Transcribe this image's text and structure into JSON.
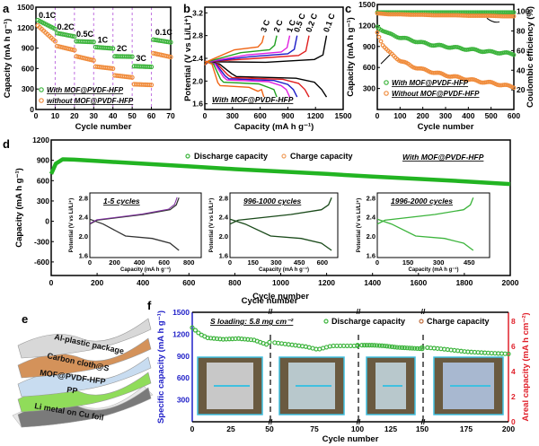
{
  "panels": {
    "a": "a",
    "b": "b",
    "c": "c",
    "d": "d",
    "e": "e",
    "f": "f"
  },
  "chart_data": [
    {
      "id": "a",
      "type": "scatter",
      "xlabel": "Cycle number",
      "ylabel": "Capacity (mA h g⁻¹)",
      "xlim": [
        0,
        70
      ],
      "ylim": [
        0,
        1500
      ],
      "xticks": [
        0,
        10,
        20,
        30,
        40,
        50,
        60,
        70
      ],
      "yticks": [
        0,
        300,
        600,
        900,
        1200,
        1500
      ],
      "rate_labels": [
        {
          "label": "0.1C",
          "x": 1
        },
        {
          "label": "0.2C",
          "x": 11
        },
        {
          "label": "0.5C",
          "x": 21
        },
        {
          "label": "1C",
          "x": 32
        },
        {
          "label": "2C",
          "x": 42
        },
        {
          "label": "3C",
          "x": 52
        },
        {
          "label": "0.1C",
          "x": 62
        }
      ],
      "dividers": [
        10,
        20,
        30,
        40,
        50,
        60
      ],
      "series": [
        {
          "name": "With MOF@PVDF-HFP",
          "color": "#3cb43c",
          "segments": [
            [
              1310,
              1180
            ],
            [
              1120,
              1070
            ],
            [
              1000,
              990
            ],
            [
              915,
              895
            ],
            [
              780,
              775
            ],
            [
              635,
              625
            ],
            [
              1025,
              985
            ]
          ]
        },
        {
          "name": "without MOF@PVDF-HFP",
          "color": "#f08c3c",
          "segments": [
            [
              1230,
              1000
            ],
            [
              930,
              870
            ],
            [
              780,
              720
            ],
            [
              630,
              600
            ],
            [
              500,
              470
            ],
            [
              370,
              360
            ],
            [
              825,
              770
            ]
          ]
        }
      ]
    },
    {
      "id": "b",
      "type": "line",
      "xlabel": "Capacity (mA h g⁻¹)",
      "ylabel": "Potential (V vs Li/Li⁺)",
      "xlim": [
        0,
        1500
      ],
      "ylim": [
        1.5,
        3.3
      ],
      "xticks": [
        0,
        300,
        600,
        900,
        1200,
        1500
      ],
      "yticks": [
        1.6,
        2.0,
        2.4,
        2.8,
        3.2
      ],
      "annotation": "With MOF@PVDF-HFP",
      "series": [
        {
          "name": "0.1 C",
          "color": "#000000",
          "capacity": 1320,
          "charge_plateau": 2.38,
          "discharge_plateau": 2.08
        },
        {
          "name": "0.2 C",
          "color": "#e02020",
          "capacity": 1130,
          "charge_plateau": 2.45,
          "discharge_plateau": 2.06
        },
        {
          "name": "0.5 C",
          "color": "#1c1cc8",
          "capacity": 1000,
          "charge_plateau": 2.48,
          "discharge_plateau": 2.04
        },
        {
          "name": "1 C",
          "color": "#e020e0",
          "capacity": 920,
          "charge_plateau": 2.51,
          "discharge_plateau": 2.02
        },
        {
          "name": "2 C",
          "color": "#20a020",
          "capacity": 780,
          "charge_plateau": 2.55,
          "discharge_plateau": 1.98
        },
        {
          "name": "3 C",
          "color": "#f06414",
          "capacity": 640,
          "charge_plateau": 2.6,
          "discharge_plateau": 1.92
        }
      ]
    },
    {
      "id": "c",
      "type": "scatter",
      "xlabel": "Cycle number",
      "ylabel": "Capacity (mA h g⁻¹)",
      "y2label": "Coulombic efficiency (%)",
      "xlim": [
        0,
        600
      ],
      "ylim": [
        0,
        1500
      ],
      "y2lim": [
        0,
        107
      ],
      "xticks": [
        0,
        100,
        200,
        300,
        400,
        500,
        600
      ],
      "yticks": [
        300,
        600,
        900,
        1200,
        1500
      ],
      "y2ticks": [
        20,
        40,
        60,
        80,
        100
      ],
      "series": [
        {
          "name": "With MOF@PVDF-HFP",
          "color": "#3cb43c",
          "x": [
            0,
            50,
            100,
            150,
            200,
            250,
            300,
            350,
            400,
            450,
            500,
            550,
            600
          ],
          "capacity": [
            1180,
            1080,
            1030,
            990,
            950,
            920,
            900,
            880,
            860,
            840,
            820,
            810,
            790
          ],
          "ce": [
            99,
            99,
            99,
            99,
            99,
            99,
            99,
            99,
            99,
            99,
            99,
            99,
            99
          ]
        },
        {
          "name": "Without MOF@PVDF-HFP",
          "color": "#f08c3c",
          "x": [
            0,
            25,
            50,
            100,
            150,
            200,
            250,
            300,
            350,
            400,
            450,
            500,
            550,
            600
          ],
          "capacity": [
            1100,
            920,
            820,
            700,
            620,
            570,
            530,
            490,
            460,
            430,
            400,
            380,
            350,
            320
          ],
          "ce": [
            98,
            97.5,
            97,
            97,
            96.5,
            96.5,
            96,
            96,
            96,
            95.5,
            95.5,
            95.5,
            95,
            95
          ]
        }
      ]
    },
    {
      "id": "d",
      "type": "scatter",
      "xlabel": "Cycle number",
      "ylabel": "Capacity (mA h g⁻¹)",
      "xlim": [
        0,
        2000
      ],
      "ylim": [
        -800,
        1200
      ],
      "xticks": [
        0,
        200,
        400,
        600,
        800,
        1000,
        1200,
        1400,
        1600,
        1800,
        2000
      ],
      "yticks": [
        -600,
        -300,
        0,
        300,
        600,
        900,
        1200
      ],
      "annotation": "With MOF@PVDF-HFP",
      "legend": [
        "Discharge capacity",
        "Charge capacity"
      ],
      "series": [
        {
          "name": "Discharge capacity",
          "color": "#22b422",
          "x": [
            0,
            20,
            50,
            100,
            200,
            400,
            600,
            800,
            1000,
            1200,
            1400,
            1600,
            1800,
            2000
          ],
          "y": [
            700,
            850,
            915,
            910,
            890,
            850,
            810,
            770,
            735,
            700,
            660,
            625,
            590,
            550
          ]
        }
      ],
      "insets": [
        {
          "title": "1-5 cycles",
          "xlabel": "Capacity (mA h g⁻¹)",
          "ylabel": "Potential (V vs Li/Li⁺)",
          "xticks": [
            0,
            200,
            400,
            600,
            800
          ],
          "yticks": [
            1.6,
            2.0,
            2.4,
            2.8
          ],
          "xlim": [
            0,
            900
          ],
          "capacity": 720
        },
        {
          "title": "996-1000 cycles",
          "xlabel": "Capacity (mA h g⁻¹)",
          "ylabel": "Potential (V vs Li/Li⁺)",
          "xticks": [
            0,
            150,
            300,
            450,
            600
          ],
          "yticks": [
            1.6,
            2.0,
            2.4,
            2.8
          ],
          "xlim": [
            0,
            700
          ],
          "capacity": 660
        },
        {
          "title": "1996-2000 cycles",
          "xlabel": "Capacity (mA h g⁻¹)",
          "ylabel": "Potential (V vs Li/Li⁺)",
          "xticks": [
            0,
            150,
            300,
            450
          ],
          "yticks": [
            1.6,
            2.0,
            2.4,
            2.8
          ],
          "xlim": [
            0,
            550
          ],
          "capacity": 470
        }
      ]
    },
    {
      "id": "f",
      "type": "scatter",
      "xlabel": "Cycle number",
      "ylabel": "Specific capacity (mA h g⁻¹)",
      "y2label": "Areal capacity (mA h cm⁻²)",
      "ylim": [
        0,
        1500
      ],
      "y2lim": [
        0,
        8.7
      ],
      "xticks": [
        0,
        25,
        50,
        75,
        100,
        125,
        150,
        175,
        200
      ],
      "yticks": [
        300,
        600,
        900,
        1200,
        1500
      ],
      "y2ticks": [
        0,
        2,
        4,
        6,
        8
      ],
      "annotation": "S loading: 5.8 mg cm⁻²",
      "legend": [
        "Discharge capacity",
        "Charge capacity"
      ],
      "segments": [
        {
          "x": [
            0,
            5,
            10,
            20,
            30,
            40,
            48
          ],
          "y": [
            1290,
            1200,
            1150,
            1130,
            1140,
            1120,
            1060
          ]
        },
        {
          "x": [
            50,
            60,
            70,
            77,
            85,
            95,
            100
          ],
          "y": [
            1090,
            1060,
            1030,
            990,
            1040,
            1040,
            1040
          ]
        },
        {
          "x": [
            100,
            110,
            120,
            130,
            140,
            150
          ],
          "y": [
            1050,
            1050,
            1040,
            1020,
            1010,
            1000
          ]
        },
        {
          "x": [
            150,
            160,
            175,
            190,
            200
          ],
          "y": [
            1020,
            1000,
            960,
            940,
            930
          ]
        }
      ]
    }
  ],
  "panel_e": {
    "layers": [
      "Al-plastic package",
      "Carbon cloth@S",
      "MOF@PVDF-HFP",
      "PP",
      "Li metal on Cu foil"
    ]
  }
}
